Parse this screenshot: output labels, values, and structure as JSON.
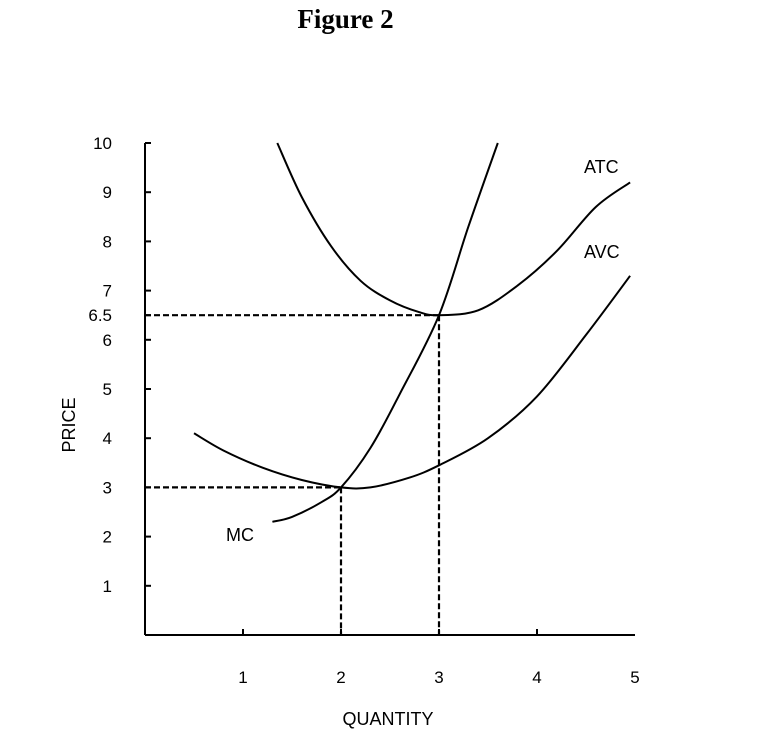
{
  "title": "Figure 2",
  "chart_data": {
    "type": "line",
    "title": "Figure 2",
    "xlabel": "QUANTITY",
    "ylabel": "PRICE",
    "xlim": [
      0,
      5
    ],
    "ylim": [
      0,
      10
    ],
    "x_ticks": [
      1,
      2,
      3,
      4,
      5
    ],
    "y_ticks": [
      1,
      2,
      3,
      4,
      5,
      6,
      6.5,
      7,
      8,
      9,
      10
    ],
    "grid": false,
    "series": [
      {
        "name": "MC",
        "x": [
          1.3,
          1.5,
          1.8,
          2.0,
          2.3,
          2.6,
          3.0,
          3.3,
          3.6
        ],
        "y": [
          2.3,
          2.4,
          2.7,
          3.0,
          3.8,
          4.9,
          6.5,
          8.3,
          10.0
        ],
        "color": "#000000"
      },
      {
        "name": "ATC",
        "x": [
          1.35,
          1.6,
          1.9,
          2.2,
          2.5,
          2.8,
          3.0,
          3.4,
          3.8,
          4.2,
          4.6,
          4.95
        ],
        "y": [
          10.0,
          8.9,
          7.9,
          7.2,
          6.8,
          6.56,
          6.5,
          6.6,
          7.1,
          7.8,
          8.7,
          9.2
        ],
        "color": "#000000"
      },
      {
        "name": "AVC",
        "x": [
          0.5,
          0.8,
          1.2,
          1.6,
          2.0,
          2.3,
          2.7,
          3.0,
          3.5,
          4.0,
          4.5,
          4.95
        ],
        "y": [
          4.1,
          3.75,
          3.4,
          3.15,
          3.0,
          3.0,
          3.2,
          3.45,
          4.0,
          4.85,
          6.1,
          7.3
        ],
        "color": "#000000"
      }
    ],
    "reference_lines": [
      {
        "x": 2,
        "y": 3
      },
      {
        "x": 3,
        "y": 6.5
      }
    ],
    "annotations": [
      "ATC",
      "AVC",
      "MC"
    ]
  }
}
